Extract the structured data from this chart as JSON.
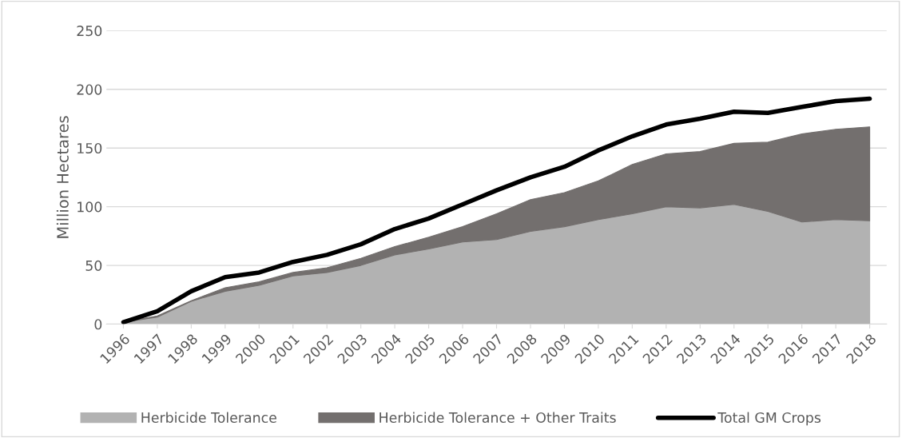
{
  "chart_data": {
    "type": "area",
    "ylabel": "Million Hectares",
    "categories": [
      "1996",
      "1997",
      "1998",
      "1999",
      "2000",
      "2001",
      "2002",
      "2003",
      "2004",
      "2005",
      "2006",
      "2007",
      "2008",
      "2009",
      "2010",
      "2011",
      "2012",
      "2013",
      "2014",
      "2015",
      "2016",
      "2017",
      "2018"
    ],
    "stacked": true,
    "ylim": [
      0,
      250
    ],
    "yticks": [
      0,
      50,
      100,
      150,
      200,
      250
    ],
    "grid": "y",
    "legend": "bottom",
    "series": [
      {
        "name": "Herbicide Tolerance",
        "color": "#b2b2b2",
        "values": [
          1.5,
          6,
          19.5,
          28,
          33,
          41,
          44,
          50,
          59,
          64,
          70,
          72,
          79,
          83,
          89,
          94,
          100,
          99,
          102,
          96,
          87,
          89,
          88
        ]
      },
      {
        "name": "Herbicide Tolerance + Other Traits",
        "color": "#736f6e",
        "values": [
          0.2,
          1,
          0.5,
          3,
          3,
          3,
          4,
          6,
          7,
          10,
          13,
          22,
          27,
          29,
          33,
          42,
          45,
          48,
          52,
          59,
          75,
          77,
          80
        ]
      },
      {
        "name": "Total GM Crops",
        "type": "line",
        "color": "#000000",
        "values": [
          1.7,
          11,
          28,
          40,
          44,
          53,
          59,
          68,
          81,
          90,
          102,
          114,
          125,
          134,
          148,
          160,
          170,
          175,
          181,
          180,
          185,
          190,
          192
        ]
      }
    ]
  }
}
